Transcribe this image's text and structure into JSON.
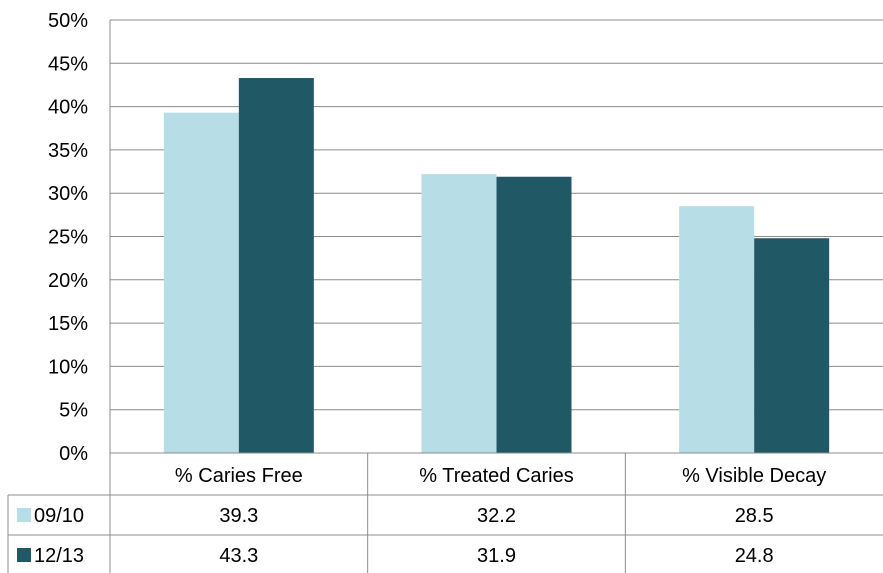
{
  "chart_data": {
    "type": "bar",
    "categories": [
      "% Caries Free",
      "% Treated Caries",
      "% Visible Decay"
    ],
    "series": [
      {
        "name": "09/10",
        "color": "#b7dde6",
        "values": [
          39.3,
          32.2,
          28.5
        ]
      },
      {
        "name": "12/13",
        "color": "#215866",
        "values": [
          43.3,
          31.9,
          24.8
        ]
      }
    ],
    "ylim": [
      0,
      50
    ],
    "yticks": [
      "0%",
      "5%",
      "10%",
      "15%",
      "20%",
      "25%",
      "30%",
      "35%",
      "40%",
      "45%",
      "50%"
    ],
    "tick_values": [
      0,
      5,
      10,
      15,
      20,
      25,
      30,
      35,
      40,
      45,
      50
    ],
    "grid": true,
    "legend": "data-table",
    "table": {
      "rows": [
        {
          "label": "09/10",
          "cells": [
            "39.3",
            "32.2",
            "28.5"
          ]
        },
        {
          "label": "12/13",
          "cells": [
            "43.3",
            "31.9",
            "24.8"
          ]
        }
      ]
    }
  }
}
